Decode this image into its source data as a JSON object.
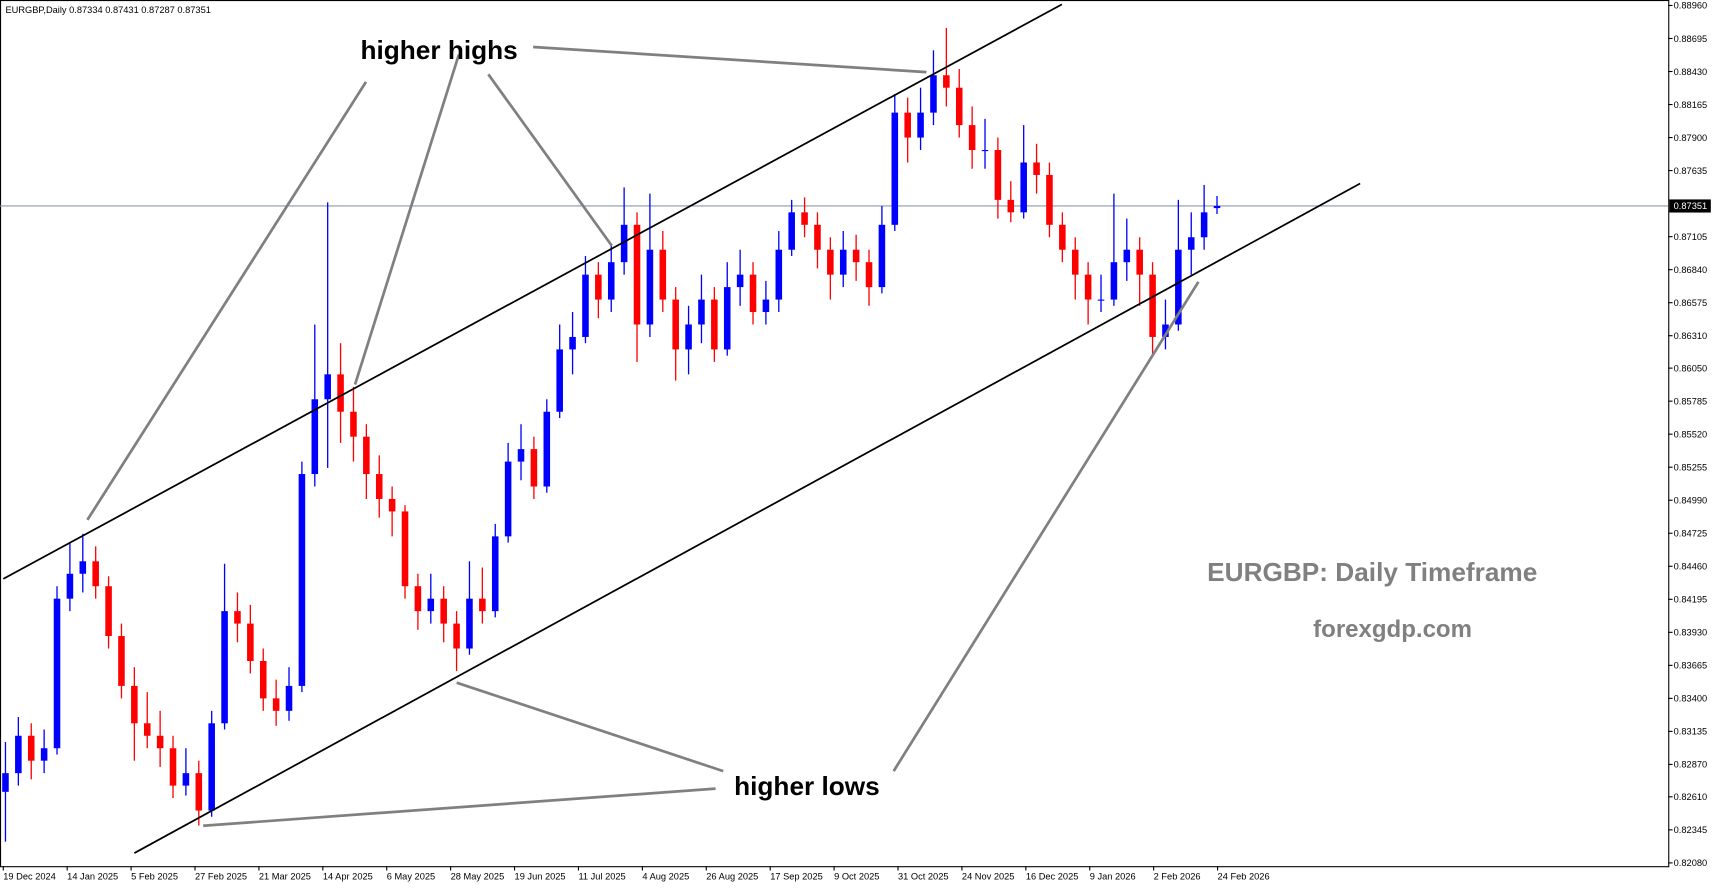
{
  "chart_data": {
    "type": "candlestick",
    "title": "EURGBP,Daily",
    "up_color": "#0000ff",
    "down_color": "#ff0000",
    "x_labels": [
      "19 Dec 2024",
      "14 Jan 2025",
      "5 Feb 2025",
      "27 Feb 2025",
      "21 Mar 2025",
      "14 Apr 2025",
      "6 May 2025",
      "28 May 2025",
      "19 Jun 2025",
      "11 Jul 2025",
      "4 Aug 2025",
      "26 Aug 2025",
      "17 Sep 2025",
      "9 Oct 2025",
      "31 Oct 2025",
      "24 Nov 2025",
      "16 Dec 2025",
      "9 Jan 2026",
      "2 Feb 2026",
      "24 Feb 2026"
    ],
    "open": [
      0.8265,
      0.828,
      0.831,
      0.829,
      0.83,
      0.842,
      0.844,
      0.845,
      0.843,
      0.839,
      0.835,
      0.832,
      0.831,
      0.83,
      0.827,
      0.828,
      0.825,
      0.832,
      0.841,
      0.84,
      0.837,
      0.834,
      0.833,
      0.835,
      0.852,
      0.858,
      0.86,
      0.857,
      0.855,
      0.852,
      0.85,
      0.849,
      0.843,
      0.841,
      0.842,
      0.84,
      0.838,
      0.842,
      0.841,
      0.847,
      0.853,
      0.854,
      0.851,
      0.857,
      0.862,
      0.863,
      0.868,
      0.866,
      0.869,
      0.872,
      0.864,
      0.87,
      0.866,
      0.862,
      0.864,
      0.866,
      0.862,
      0.867,
      0.868,
      0.865,
      0.866,
      0.87,
      0.873,
      0.872,
      0.87,
      0.868,
      0.87,
      0.869,
      0.867,
      0.872,
      0.881,
      0.879,
      0.881,
      0.884,
      0.883,
      0.88,
      0.878,
      0.878,
      0.874,
      0.873,
      0.877,
      0.876,
      0.872,
      0.87,
      0.868,
      0.866,
      0.866,
      0.869,
      0.87,
      0.868,
      0.863,
      0.864,
      0.87,
      0.871,
      0.87334
    ],
    "high": [
      0.8305,
      0.8325,
      0.832,
      0.8315,
      0.843,
      0.8465,
      0.8472,
      0.8462,
      0.8438,
      0.84,
      0.8365,
      0.8345,
      0.833,
      0.831,
      0.83,
      0.829,
      0.833,
      0.8448,
      0.8425,
      0.8415,
      0.838,
      0.8355,
      0.8365,
      0.853,
      0.864,
      0.8738,
      0.8625,
      0.859,
      0.856,
      0.8535,
      0.851,
      0.8495,
      0.844,
      0.844,
      0.843,
      0.841,
      0.845,
      0.8445,
      0.848,
      0.8545,
      0.856,
      0.855,
      0.858,
      0.864,
      0.865,
      0.8695,
      0.869,
      0.8705,
      0.875,
      0.873,
      0.8745,
      0.8715,
      0.867,
      0.8655,
      0.868,
      0.867,
      0.869,
      0.87,
      0.869,
      0.8675,
      0.8715,
      0.874,
      0.8742,
      0.873,
      0.871,
      0.8715,
      0.8712,
      0.87,
      0.8735,
      0.8825,
      0.8822,
      0.883,
      0.886,
      0.8878,
      0.8845,
      0.8815,
      0.8805,
      0.879,
      0.8755,
      0.88,
      0.8785,
      0.877,
      0.873,
      0.871,
      0.869,
      0.868,
      0.8745,
      0.8725,
      0.871,
      0.869,
      0.866,
      0.874,
      0.873,
      0.8752,
      0.87431
    ],
    "low": [
      0.8225,
      0.827,
      0.8275,
      0.828,
      0.8295,
      0.841,
      0.8425,
      0.842,
      0.838,
      0.834,
      0.829,
      0.83,
      0.8285,
      0.826,
      0.8262,
      0.8238,
      0.8245,
      0.8315,
      0.8385,
      0.836,
      0.833,
      0.8318,
      0.8322,
      0.8345,
      0.851,
      0.8525,
      0.8545,
      0.853,
      0.85,
      0.8485,
      0.847,
      0.842,
      0.8395,
      0.84,
      0.8385,
      0.8362,
      0.8375,
      0.84,
      0.8405,
      0.8465,
      0.8515,
      0.85,
      0.8505,
      0.8565,
      0.86,
      0.8625,
      0.8645,
      0.865,
      0.868,
      0.861,
      0.863,
      0.865,
      0.8595,
      0.86,
      0.8625,
      0.861,
      0.8615,
      0.8655,
      0.864,
      0.864,
      0.865,
      0.8695,
      0.871,
      0.8685,
      0.866,
      0.867,
      0.8675,
      0.8655,
      0.8665,
      0.8715,
      0.877,
      0.878,
      0.88,
      0.8815,
      0.879,
      0.8765,
      0.8765,
      0.8725,
      0.8722,
      0.8725,
      0.8745,
      0.871,
      0.869,
      0.866,
      0.864,
      0.865,
      0.8655,
      0.8675,
      0.8655,
      0.8615,
      0.862,
      0.8635,
      0.868,
      0.87,
      0.87287
    ],
    "close": [
      0.828,
      0.831,
      0.829,
      0.83,
      0.842,
      0.844,
      0.845,
      0.843,
      0.839,
      0.835,
      0.832,
      0.831,
      0.83,
      0.827,
      0.828,
      0.825,
      0.832,
      0.841,
      0.84,
      0.837,
      0.834,
      0.833,
      0.835,
      0.852,
      0.858,
      0.86,
      0.857,
      0.855,
      0.852,
      0.85,
      0.849,
      0.843,
      0.841,
      0.842,
      0.84,
      0.838,
      0.842,
      0.841,
      0.847,
      0.853,
      0.854,
      0.851,
      0.857,
      0.862,
      0.863,
      0.868,
      0.866,
      0.869,
      0.872,
      0.864,
      0.87,
      0.866,
      0.862,
      0.864,
      0.866,
      0.862,
      0.867,
      0.868,
      0.865,
      0.866,
      0.87,
      0.873,
      0.872,
      0.87,
      0.868,
      0.87,
      0.869,
      0.867,
      0.872,
      0.881,
      0.879,
      0.881,
      0.884,
      0.883,
      0.88,
      0.878,
      0.878,
      0.874,
      0.873,
      0.877,
      0.876,
      0.872,
      0.87,
      0.868,
      0.866,
      0.866,
      0.869,
      0.87,
      0.868,
      0.863,
      0.864,
      0.87,
      0.871,
      0.873,
      0.87351
    ],
    "ylim": [
      0.8208,
      0.8896
    ],
    "yticks": [
      {
        "value": 0.8896,
        "label": "0.88960"
      },
      {
        "value": 0.88695,
        "label": "0.88695"
      },
      {
        "value": 0.8843,
        "label": "0.88430"
      },
      {
        "value": 0.88165,
        "label": "0.88165"
      },
      {
        "value": 0.879,
        "label": "0.87900"
      },
      {
        "value": 0.87635,
        "label": "0.87635"
      },
      {
        "value": 0.87105,
        "label": "0.87105"
      },
      {
        "value": 0.8684,
        "label": "0.86840"
      },
      {
        "value": 0.86575,
        "label": "0.86575"
      },
      {
        "value": 0.8631,
        "label": "0.86310"
      },
      {
        "value": 0.8605,
        "label": "0.86050"
      },
      {
        "value": 0.85785,
        "label": "0.85785"
      },
      {
        "value": 0.8552,
        "label": "0.85520"
      },
      {
        "value": 0.85255,
        "label": "0.85255"
      },
      {
        "value": 0.8499,
        "label": "0.84990"
      },
      {
        "value": 0.84725,
        "label": "0.84725"
      },
      {
        "value": 0.8446,
        "label": "0.84460"
      },
      {
        "value": 0.84195,
        "label": "0.84195"
      },
      {
        "value": 0.8393,
        "label": "0.83930"
      },
      {
        "value": 0.83665,
        "label": "0.83665"
      },
      {
        "value": 0.834,
        "label": "0.83400"
      },
      {
        "value": 0.83135,
        "label": "0.83135"
      },
      {
        "value": 0.8287,
        "label": "0.82870"
      },
      {
        "value": 0.8261,
        "label": "0.82610"
      },
      {
        "value": 0.82345,
        "label": "0.82345"
      },
      {
        "value": 0.8208,
        "label": "0.82080"
      }
    ],
    "annotations": [
      "higher highs",
      "higher lows",
      "EURGBP: Daily Timeframe",
      "forexgdp.com"
    ]
  }
}
